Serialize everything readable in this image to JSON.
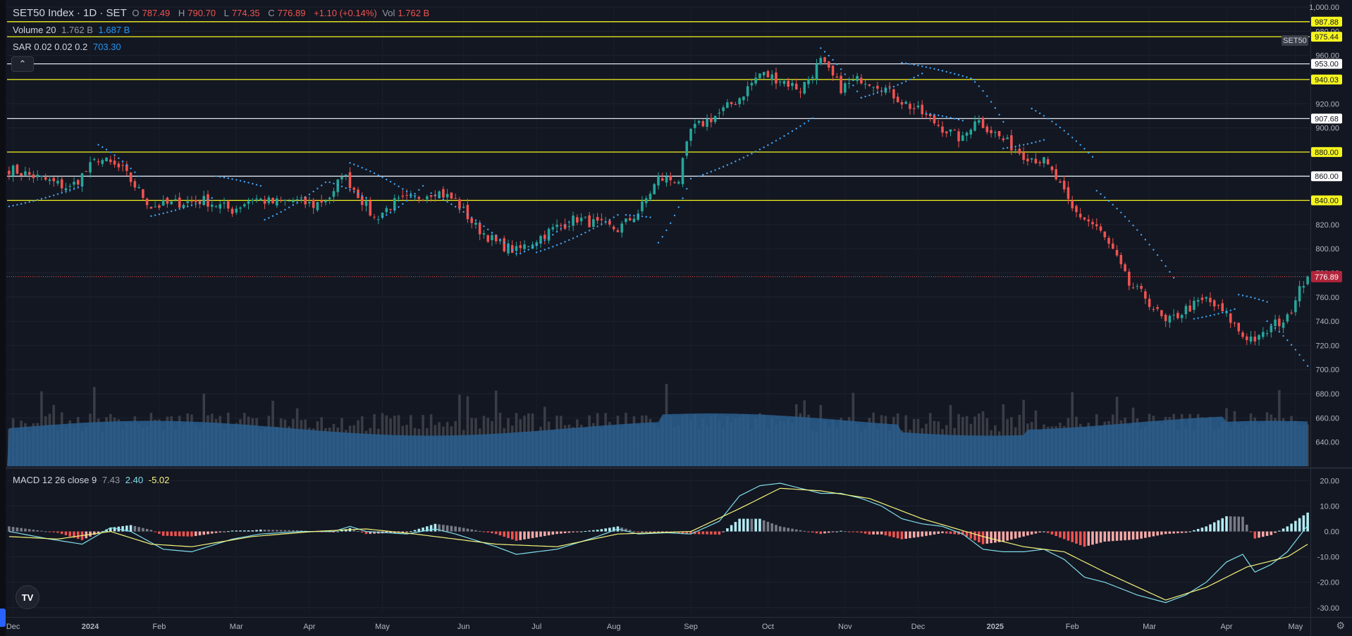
{
  "symbol": {
    "name": "SET50 Index · 1D · SET",
    "tag": "SET50"
  },
  "ohlc": {
    "o_label": "O",
    "o": "787.49",
    "h_label": "H",
    "h": "790.70",
    "l_label": "L",
    "l": "774.35",
    "c_label": "C",
    "c": "776.89",
    "change": "+1.10 (+0.14%)",
    "vol_label": "Vol",
    "vol": "1.762 B"
  },
  "volume_legend": {
    "label": "Volume 20",
    "v1": "1.762 B",
    "v2": "1.687 B"
  },
  "sar_legend": {
    "label": "SAR 0.02 0.02 0.2",
    "value": "703.30"
  },
  "macd_legend": {
    "label": "MACD 12 26 close 9",
    "v1": "7.43",
    "v2": "2.40",
    "v3": "-5.02"
  },
  "collapse_icon": "chevron-up-icon",
  "logo_text": "TV",
  "settings_icon": "gear-icon",
  "colors": {
    "bg": "#131722",
    "up": "#26a69a",
    "down": "#ef5350",
    "sar": "#42a5f5",
    "yellow": "#f5f51e",
    "white_line": "#e0e3eb",
    "vol_ma": "#2a5f8f",
    "macd": "#80deea",
    "signal": "#f5f57a"
  },
  "chart_data": {
    "type": "candlestick",
    "price_axis": {
      "range": [
        620,
        1000
      ],
      "ticks": [
        "640.00",
        "660.00",
        "680.00",
        "700.00",
        "720.00",
        "740.00",
        "760.00",
        "780.00",
        "800.00",
        "820.00",
        "840.00",
        "860.00",
        "880.00",
        "900.00",
        "920.00",
        "940.00",
        "960.00",
        "980.00",
        "1,000.00"
      ]
    },
    "time_axis": {
      "labels": [
        "Dec",
        "2024",
        "Feb",
        "Mar",
        "Apr",
        "May",
        "Jun",
        "Jul",
        "Aug",
        "Sep",
        "Oct",
        "Nov",
        "Dec",
        "2025",
        "Feb",
        "Mar",
        "Apr",
        "May"
      ]
    },
    "horizontal_levels": [
      {
        "value": 987.88,
        "label": "987.88",
        "color": "yellow"
      },
      {
        "value": 975.44,
        "label": "975.44",
        "color": "yellow"
      },
      {
        "value": 953.0,
        "label": "953.00",
        "color": "white"
      },
      {
        "value": 940.03,
        "label": "940.03",
        "color": "yellow"
      },
      {
        "value": 907.68,
        "label": "907.68",
        "color": "white"
      },
      {
        "value": 880.0,
        "label": "880.00",
        "color": "yellow"
      },
      {
        "value": 860.0,
        "label": "860.00",
        "color": "white"
      },
      {
        "value": 840.0,
        "label": "840.00",
        "color": "yellow"
      }
    ],
    "last_price": {
      "value": 776.89,
      "label": "776.89"
    },
    "closes_anchor": [
      [
        0,
        866
      ],
      [
        8,
        858
      ],
      [
        15,
        850
      ],
      [
        22,
        875
      ],
      [
        28,
        865
      ],
      [
        35,
        835
      ],
      [
        42,
        838
      ],
      [
        48,
        840
      ],
      [
        55,
        832
      ],
      [
        60,
        842
      ],
      [
        65,
        838
      ],
      [
        70,
        840
      ],
      [
        75,
        836
      ],
      [
        80,
        845
      ],
      [
        82,
        863
      ],
      [
        86,
        845
      ],
      [
        90,
        825
      ],
      [
        95,
        838
      ],
      [
        100,
        842
      ],
      [
        105,
        848
      ],
      [
        110,
        840
      ],
      [
        115,
        818
      ],
      [
        120,
        805
      ],
      [
        125,
        798
      ],
      [
        130,
        808
      ],
      [
        135,
        818
      ],
      [
        140,
        825
      ],
      [
        145,
        820
      ],
      [
        150,
        816
      ],
      [
        155,
        830
      ],
      [
        160,
        858
      ],
      [
        165,
        857
      ],
      [
        168,
        898
      ],
      [
        175,
        912
      ],
      [
        180,
        925
      ],
      [
        185,
        945
      ],
      [
        190,
        940
      ],
      [
        195,
        932
      ],
      [
        200,
        955
      ],
      [
        205,
        933
      ],
      [
        210,
        941
      ],
      [
        215,
        935
      ],
      [
        220,
        922
      ],
      [
        225,
        912
      ],
      [
        230,
        900
      ],
      [
        235,
        890
      ],
      [
        238,
        908
      ],
      [
        245,
        890
      ],
      [
        250,
        878
      ],
      [
        255,
        872
      ],
      [
        258,
        858
      ],
      [
        262,
        832
      ],
      [
        268,
        818
      ],
      [
        272,
        798
      ],
      [
        276,
        770
      ],
      [
        280,
        760
      ],
      [
        285,
        738
      ],
      [
        290,
        750
      ],
      [
        295,
        758
      ],
      [
        300,
        745
      ],
      [
        304,
        728
      ],
      [
        308,
        725
      ],
      [
        312,
        738
      ],
      [
        315,
        742
      ],
      [
        318,
        770
      ],
      [
        320,
        777
      ]
    ],
    "sar_segments": [
      {
        "start": [
          0,
          835
        ],
        "end": [
          18,
          852
        ]
      },
      {
        "start": [
          22,
          886
        ],
        "end": [
          32,
          860
        ]
      },
      {
        "start": [
          35,
          827
        ],
        "end": [
          50,
          842
        ]
      },
      {
        "start": [
          51,
          860
        ],
        "end": [
          62,
          852
        ]
      },
      {
        "start": [
          63,
          824
        ],
        "end": [
          78,
          855
        ]
      },
      {
        "start": [
          79,
          855
        ],
        "end": [
          88,
          842
        ]
      },
      {
        "start": [
          84,
          871
        ],
        "end": [
          100,
          843
        ]
      },
      {
        "start": [
          92,
          826
        ],
        "end": [
          102,
          852
        ]
      },
      {
        "start": [
          104,
          846
        ],
        "end": [
          125,
          796
        ]
      },
      {
        "start": [
          126,
          796
        ],
        "end": [
          138,
          822
        ]
      },
      {
        "start": [
          130,
          797
        ],
        "end": [
          150,
          828
        ]
      },
      {
        "start": [
          152,
          828
        ],
        "end": [
          158,
          826
        ]
      },
      {
        "start": [
          160,
          805
        ],
        "end": [
          168,
          858
        ]
      },
      {
        "start": [
          170,
          860
        ],
        "end": [
          198,
          908
        ]
      },
      {
        "start": [
          200,
          966
        ],
        "end": [
          210,
          925
        ]
      },
      {
        "start": [
          210,
          925
        ],
        "end": [
          225,
          945
        ]
      },
      {
        "start": [
          220,
          954
        ],
        "end": [
          238,
          940
        ]
      },
      {
        "start": [
          226,
          912
        ],
        "end": [
          235,
          906
        ]
      },
      {
        "start": [
          238,
          938
        ],
        "end": [
          245,
          905
        ]
      },
      {
        "start": [
          245,
          883
        ],
        "end": [
          255,
          890
        ]
      },
      {
        "start": [
          252,
          916
        ],
        "end": [
          267,
          876
        ]
      },
      {
        "start": [
          268,
          848
        ],
        "end": [
          287,
          776
        ]
      },
      {
        "start": [
          292,
          742
        ],
        "end": [
          302,
          750
        ]
      },
      {
        "start": [
          303,
          762
        ],
        "end": [
          310,
          756
        ]
      },
      {
        "start": [
          310,
          740
        ],
        "end": [
          320,
          703
        ]
      }
    ],
    "volume_axis_note": "volume bars, 20-period MA area",
    "macd": {
      "axis": {
        "range": [
          -32,
          24
        ],
        "ticks": [
          "20.00",
          "10.00",
          "0.00",
          "-10.00",
          "-20.00",
          "-30.00"
        ]
      },
      "macd_anchor": [
        [
          0,
          0
        ],
        [
          10,
          -3
        ],
        [
          18,
          -5
        ],
        [
          25,
          1.5
        ],
        [
          30,
          0
        ],
        [
          38,
          -7
        ],
        [
          45,
          -8
        ],
        [
          55,
          -3
        ],
        [
          62,
          -1
        ],
        [
          72,
          0
        ],
        [
          80,
          0
        ],
        [
          84,
          2
        ],
        [
          88,
          0
        ],
        [
          98,
          -1
        ],
        [
          105,
          1
        ],
        [
          110,
          -1
        ],
        [
          120,
          -6
        ],
        [
          125,
          -9
        ],
        [
          135,
          -7
        ],
        [
          145,
          -2
        ],
        [
          150,
          1
        ],
        [
          155,
          -1
        ],
        [
          162,
          -0.5
        ],
        [
          168,
          -1
        ],
        [
          175,
          4
        ],
        [
          180,
          14
        ],
        [
          185,
          18
        ],
        [
          190,
          19
        ],
        [
          195,
          17
        ],
        [
          200,
          15
        ],
        [
          205,
          15
        ],
        [
          210,
          13
        ],
        [
          215,
          10
        ],
        [
          220,
          5
        ],
        [
          225,
          3
        ],
        [
          230,
          2
        ],
        [
          235,
          -1
        ],
        [
          240,
          -7
        ],
        [
          245,
          -8
        ],
        [
          250,
          -8
        ],
        [
          255,
          -7
        ],
        [
          260,
          -11
        ],
        [
          265,
          -18
        ],
        [
          270,
          -20
        ],
        [
          278,
          -25
        ],
        [
          285,
          -28
        ],
        [
          290,
          -25
        ],
        [
          295,
          -20
        ],
        [
          300,
          -12
        ],
        [
          304,
          -9
        ],
        [
          307,
          -16
        ],
        [
          311,
          -13
        ],
        [
          315,
          -8
        ],
        [
          320,
          2.4
        ]
      ],
      "signal_anchor": [
        [
          0,
          -2
        ],
        [
          12,
          -3
        ],
        [
          25,
          0
        ],
        [
          35,
          -5
        ],
        [
          45,
          -6
        ],
        [
          60,
          -2
        ],
        [
          75,
          0
        ],
        [
          88,
          1
        ],
        [
          100,
          -1
        ],
        [
          120,
          -5
        ],
        [
          135,
          -6
        ],
        [
          150,
          -1
        ],
        [
          168,
          0
        ],
        [
          180,
          9
        ],
        [
          190,
          17
        ],
        [
          200,
          16
        ],
        [
          212,
          13
        ],
        [
          225,
          5
        ],
        [
          240,
          -2
        ],
        [
          250,
          -6
        ],
        [
          260,
          -8
        ],
        [
          270,
          -16
        ],
        [
          285,
          -27
        ],
        [
          295,
          -22
        ],
        [
          305,
          -14
        ],
        [
          315,
          -10
        ],
        [
          320,
          -5.02
        ]
      ],
      "hist_color_up": "#b2ebf2",
      "hist_color_down": "#ef5350"
    }
  }
}
